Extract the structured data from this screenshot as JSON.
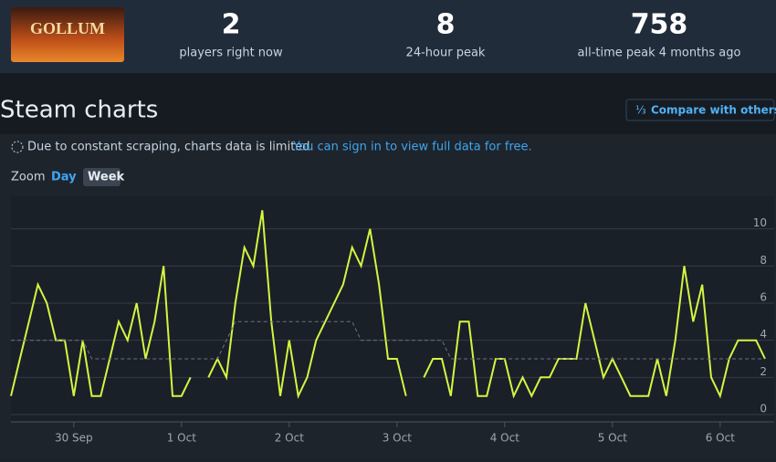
{
  "header": {
    "image_text": "GOLLUM",
    "stats": [
      {
        "value": 2,
        "label": "players right now"
      },
      {
        "value": 8,
        "label": "24-hour peak"
      },
      {
        "value": 758,
        "label": "all-time peak 4 months ago"
      }
    ]
  },
  "section": {
    "title": "Steam charts",
    "compare_icon": "⅓",
    "compare_button": "Compare with others...",
    "notice": "Due to constant scraping, charts data is limited.",
    "notice_link": "You can sign in to view full data for free.",
    "zoom_label": "Zoom",
    "zoom_options": [
      "Day",
      "Week"
    ]
  },
  "chart_data": {
    "type": "line",
    "categories": [
      null,
      null,
      null,
      null,
      null,
      null,
      null,
      "30 Sep",
      null,
      null,
      null,
      null,
      null,
      null,
      null,
      null,
      null,
      null,
      null,
      "1 Oct",
      null,
      null,
      null,
      null,
      null,
      null,
      null,
      null,
      null,
      null,
      null,
      "2 Oct",
      null,
      null,
      null,
      null,
      null,
      null,
      null,
      null,
      null,
      null,
      null,
      "3 Oct",
      null,
      null,
      null,
      null,
      null,
      null,
      null,
      null,
      null,
      null,
      null,
      "4 Oct",
      null,
      null,
      null,
      null,
      null,
      null,
      null,
      null,
      null,
      null,
      null,
      "5 Oct",
      null,
      null,
      null,
      null,
      null,
      null,
      null,
      null,
      null,
      null,
      null,
      "6 Oct",
      null,
      null,
      null,
      null,
      null
    ],
    "series": [
      {
        "color": "#d4f542",
        "values": [
          1,
          3,
          5,
          7,
          6,
          4,
          4,
          1,
          4,
          1,
          1,
          3,
          5,
          4,
          6,
          3,
          5,
          8,
          1,
          1,
          2,
          null,
          2,
          3,
          2,
          6,
          9,
          8,
          11,
          5,
          1,
          4,
          1,
          2,
          4,
          5,
          6,
          7,
          9,
          8,
          10,
          7,
          3,
          3,
          1,
          null,
          2,
          3,
          3,
          1,
          5,
          5,
          1,
          1,
          3,
          3,
          1,
          2,
          1,
          2,
          2,
          3,
          3,
          3,
          6,
          4,
          2,
          3,
          2,
          1,
          1,
          1,
          3,
          1,
          4,
          8,
          5,
          7,
          2,
          1,
          3,
          4,
          4,
          4,
          3
        ]
      },
      {
        "color": "#6b7480",
        "dashed": true,
        "values": [
          4,
          4,
          4,
          4,
          4,
          4,
          4,
          4,
          4,
          3,
          3,
          3,
          3,
          3,
          3,
          3,
          3,
          3,
          3,
          3,
          3,
          3,
          3,
          3,
          4,
          5,
          5,
          5,
          5,
          5,
          5,
          5,
          5,
          5,
          5,
          5,
          5,
          5,
          5,
          4,
          4,
          4,
          4,
          4,
          4,
          4,
          4,
          4,
          4,
          3,
          3,
          3,
          3,
          3,
          3,
          3,
          3,
          3,
          3,
          3,
          3,
          3,
          3,
          3,
          3,
          3,
          3,
          3,
          3,
          3,
          3,
          3,
          3,
          3,
          3,
          3,
          3,
          3,
          3,
          3,
          3,
          3,
          3,
          3,
          3
        ]
      }
    ],
    "ylim": [
      0,
      12
    ],
    "yticks": [
      0,
      2,
      4,
      6,
      8,
      10
    ],
    "grid": true
  }
}
